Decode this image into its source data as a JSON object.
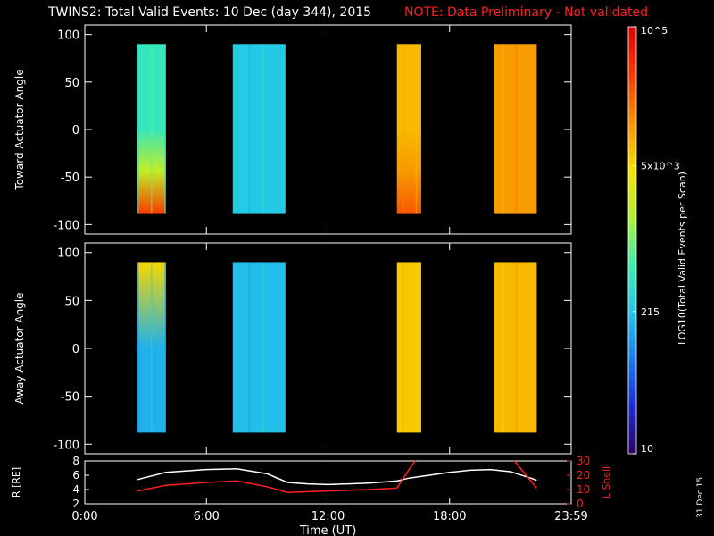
{
  "header": {
    "title": "TWINS2: Total Valid Events: 10 Dec (day 344), 2015",
    "note": "NOTE: Data Preliminary - Not validated"
  },
  "footer": {
    "stamp": "31 Dec 15"
  },
  "colors": {
    "background": "#000000",
    "note": "#ff2020",
    "radius_line": "#ffffff",
    "lshell_line": "#ff2020",
    "colormap": [
      "#2a0060",
      "#1c2cd8",
      "#1a7cf0",
      "#22c8e8",
      "#3cf0b0",
      "#b4f030",
      "#f8e000",
      "#f89000",
      "#f83800",
      "#e00000"
    ]
  },
  "chart_data": [
    {
      "type": "heatmap",
      "name": "toward-panel",
      "ylabel": "Toward Actuator Angle",
      "ylim": [
        -110,
        110
      ],
      "yticks": [
        100,
        50,
        0,
        -50,
        -100
      ],
      "xlim": [
        0,
        24
      ],
      "angle_range": [
        -88,
        90
      ],
      "intervals": [
        {
          "start": 2.6,
          "end": 4.0,
          "level": 0.42,
          "bottom_level": 0.88
        },
        {
          "start": 7.3,
          "end": 9.9,
          "level": 0.34
        },
        {
          "start": 15.4,
          "end": 16.6,
          "level": 0.72,
          "bottom_level": 0.85
        },
        {
          "start": 20.2,
          "end": 22.3,
          "level": 0.76
        }
      ]
    },
    {
      "type": "heatmap",
      "name": "away-panel",
      "ylabel": "Away Actuator Angle",
      "ylim": [
        -110,
        110
      ],
      "yticks": [
        100,
        50,
        0,
        -50,
        -100
      ],
      "xlim": [
        0,
        24
      ],
      "angle_range": [
        -88,
        90
      ],
      "intervals": [
        {
          "start": 2.6,
          "end": 4.0,
          "level": 0.3,
          "top_level": 0.68
        },
        {
          "start": 7.3,
          "end": 9.9,
          "level": 0.32
        },
        {
          "start": 15.4,
          "end": 16.6,
          "level": 0.7
        },
        {
          "start": 20.2,
          "end": 22.3,
          "level": 0.72
        }
      ]
    },
    {
      "type": "line",
      "name": "orbit-panel",
      "ylabel": "R [RE]",
      "ylim": [
        2,
        8
      ],
      "yticks": [
        2,
        4,
        6,
        8
      ],
      "y2label": "L Shell",
      "y2lim": [
        0,
        30
      ],
      "y2ticks": [
        0,
        10,
        20,
        30
      ],
      "xlim": [
        0,
        24
      ],
      "xlabel": "Time (UT)",
      "xticks": [
        0,
        6,
        12,
        18,
        24
      ],
      "xtick_labels": [
        "0:00",
        "6:00",
        "12:00",
        "18:00",
        "23:59"
      ],
      "series": [
        {
          "axis": "left",
          "x": [
            2.6,
            4,
            6,
            7.5,
            9,
            10,
            11,
            12,
            13,
            14,
            15.4,
            16,
            17,
            18,
            19,
            20,
            21,
            22,
            22.3
          ],
          "values": [
            5.4,
            6.4,
            6.8,
            6.9,
            6.2,
            5.0,
            4.8,
            4.7,
            4.8,
            4.9,
            5.2,
            5.6,
            6.0,
            6.4,
            6.7,
            6.8,
            6.5,
            5.6,
            5.3
          ]
        },
        {
          "axis": "right",
          "x": [
            2.6,
            4,
            6,
            7.5,
            9,
            10,
            12,
            14,
            15.4,
            16,
            16.3
          ],
          "values": [
            9,
            13,
            15,
            16,
            12,
            8,
            9,
            10,
            11,
            24,
            30
          ]
        },
        {
          "axis": "right",
          "x": [
            21.2,
            22.3
          ],
          "values": [
            30,
            11
          ]
        }
      ]
    },
    {
      "type": "colorbar",
      "name": "colorbar",
      "label": "LOG10(Total Valid Events per Scan)",
      "scale": "log",
      "range": [
        10,
        100000
      ],
      "ticks": [
        10,
        215,
        5000,
        100000
      ],
      "tick_labels": [
        "10",
        "215",
        "5x10^3",
        "10^5"
      ]
    }
  ]
}
